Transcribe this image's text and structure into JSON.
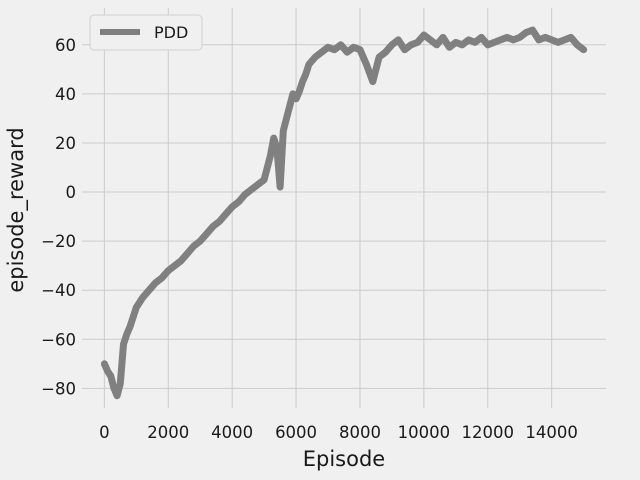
{
  "chart_data": {
    "type": "line",
    "title": "",
    "xlabel": "Episode",
    "ylabel": "episode_reward",
    "xlim": [
      -700,
      15700
    ],
    "ylim": [
      -88,
      75
    ],
    "xticks": [
      0,
      2000,
      4000,
      6000,
      8000,
      10000,
      12000,
      14000
    ],
    "xtick_labels": [
      "0",
      "2000",
      "4000",
      "6000",
      "8000",
      "10000",
      "12000",
      "14000"
    ],
    "yticks": [
      -80,
      -60,
      -40,
      -20,
      0,
      20,
      40,
      60
    ],
    "ytick_labels": [
      "−80",
      "−60",
      "−40",
      "−20",
      "0",
      "20",
      "40",
      "60"
    ],
    "grid": true,
    "legend_position": "upper-left",
    "series": [
      {
        "name": "PDD",
        "color": "#808080",
        "x": [
          0,
          100,
          200,
          300,
          400,
          500,
          600,
          700,
          800,
          1000,
          1200,
          1400,
          1600,
          1800,
          2000,
          2200,
          2400,
          2600,
          2800,
          3000,
          3200,
          3400,
          3600,
          3800,
          4000,
          4200,
          4400,
          4600,
          4800,
          5000,
          5100,
          5200,
          5300,
          5400,
          5500,
          5600,
          5700,
          5800,
          5900,
          6000,
          6100,
          6200,
          6300,
          6400,
          6600,
          6800,
          7000,
          7200,
          7400,
          7600,
          7800,
          8000,
          8200,
          8400,
          8600,
          8800,
          9000,
          9200,
          9400,
          9600,
          9800,
          10000,
          10200,
          10400,
          10600,
          10800,
          11000,
          11200,
          11400,
          11600,
          11800,
          12000,
          12200,
          12400,
          12600,
          12800,
          13000,
          13200,
          13400,
          13600,
          13800,
          14000,
          14200,
          14400,
          14600,
          14800,
          15000
        ],
        "y": [
          -70,
          -73,
          -75,
          -80,
          -83,
          -78,
          -62,
          -58,
          -55,
          -47,
          -43,
          -40,
          -37,
          -35,
          -32,
          -30,
          -28,
          -25,
          -22,
          -20,
          -17,
          -14,
          -12,
          -9,
          -6,
          -4,
          -1,
          1,
          3,
          5,
          10,
          15,
          22,
          18,
          2,
          25,
          30,
          35,
          40,
          38,
          41,
          45,
          48,
          52,
          55,
          57,
          59,
          58,
          60,
          57,
          59,
          58,
          52,
          45,
          55,
          57,
          60,
          62,
          58,
          60,
          61,
          64,
          62,
          60,
          63,
          59,
          61,
          60,
          62,
          61,
          63,
          60,
          61,
          62,
          63,
          62,
          63,
          65,
          66,
          62,
          63,
          62,
          61,
          62,
          63,
          60,
          58
        ]
      }
    ]
  }
}
